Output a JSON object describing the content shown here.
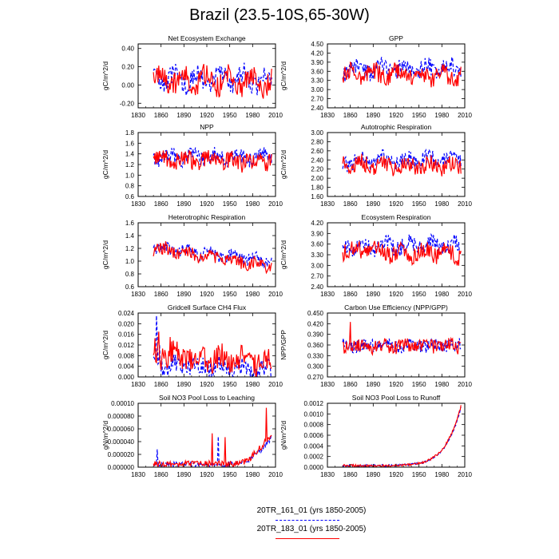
{
  "title": "Brazil (23.5-10S,65-30W)",
  "x_axis": {
    "ticks": [
      1830,
      1860,
      1890,
      1920,
      1950,
      1980,
      2010
    ],
    "range": [
      1830,
      2010
    ]
  },
  "legend": [
    {
      "name": "20TR_161_01 (yrs 1850-2005)",
      "color": "#0000ff",
      "style": "dashed"
    },
    {
      "name": "20TR_183_01 (yrs 1850-2005)",
      "color": "#ff0000",
      "style": "solid"
    }
  ],
  "chart_data": [
    {
      "type": "line",
      "title": "Net Ecosystem Exchange",
      "ylabel": "gC/m^2/d",
      "ylim": [
        -0.25,
        0.45
      ],
      "yticks": [
        -0.2,
        0.0,
        0.2,
        0.4
      ],
      "ytick_labels": [
        "-0.20",
        "0.00",
        "0.20",
        "0.40"
      ],
      "series": [
        {
          "name": "20TR_161_01",
          "x_start": 1850,
          "x_end": 2005,
          "mean": 0.06,
          "amp": 0.08,
          "trend": 0.0,
          "noise": 0.11,
          "seed": 3,
          "spike": []
        },
        {
          "name": "20TR_183_01",
          "x_start": 1850,
          "x_end": 2005,
          "mean": 0.07,
          "amp": 0.07,
          "trend": -0.04,
          "noise": 0.12,
          "seed": 7,
          "spike": []
        }
      ]
    },
    {
      "type": "line",
      "title": "GPP",
      "ylabel": "gC/m^2/d",
      "ylim": [
        2.4,
        4.5
      ],
      "yticks": [
        2.4,
        2.7,
        3.0,
        3.3,
        3.6,
        3.9,
        4.2,
        4.5
      ],
      "ytick_labels": [
        "2.40",
        "2.70",
        "3.00",
        "3.30",
        "3.60",
        "3.90",
        "4.20",
        "4.50"
      ],
      "series": [
        {
          "name": "20TR_161_01",
          "x_start": 1850,
          "x_end": 2005,
          "mean": 3.65,
          "amp": 0.15,
          "trend": 0.05,
          "noise": 0.28,
          "seed": 11,
          "spike": []
        },
        {
          "name": "20TR_183_01",
          "x_start": 1850,
          "x_end": 2005,
          "mean": 3.55,
          "amp": 0.12,
          "trend": -0.1,
          "noise": 0.3,
          "seed": 13,
          "spike": []
        }
      ]
    },
    {
      "type": "line",
      "title": "NPP",
      "ylabel": "gC/m^2/d",
      "ylim": [
        0.6,
        1.8
      ],
      "yticks": [
        0.6,
        0.8,
        1.0,
        1.2,
        1.4,
        1.6,
        1.8
      ],
      "ytick_labels": [
        "0.6",
        "0.8",
        "1.0",
        "1.2",
        "1.4",
        "1.6",
        "1.8"
      ],
      "series": [
        {
          "name": "20TR_161_01",
          "x_start": 1850,
          "x_end": 2005,
          "mean": 1.35,
          "amp": 0.06,
          "trend": 0.0,
          "noise": 0.15,
          "seed": 17,
          "spike": []
        },
        {
          "name": "20TR_183_01",
          "x_start": 1850,
          "x_end": 2005,
          "mean": 1.3,
          "amp": 0.05,
          "trend": -0.05,
          "noise": 0.17,
          "seed": 19,
          "spike": []
        }
      ]
    },
    {
      "type": "line",
      "title": "Autotrophic Respiration",
      "ylabel": "gC/m^2/d",
      "ylim": [
        1.6,
        3.0
      ],
      "yticks": [
        1.6,
        1.8,
        2.0,
        2.2,
        2.4,
        2.6,
        2.8,
        3.0
      ],
      "ytick_labels": [
        "1.60",
        "1.80",
        "2.00",
        "2.20",
        "2.40",
        "2.60",
        "2.80",
        "3.00"
      ],
      "series": [
        {
          "name": "20TR_161_01",
          "x_start": 1850,
          "x_end": 2005,
          "mean": 2.35,
          "amp": 0.08,
          "trend": 0.08,
          "noise": 0.17,
          "seed": 23,
          "spike": []
        },
        {
          "name": "20TR_183_01",
          "x_start": 1850,
          "x_end": 2005,
          "mean": 2.3,
          "amp": 0.07,
          "trend": -0.05,
          "noise": 0.18,
          "seed": 29,
          "spike": []
        }
      ]
    },
    {
      "type": "line",
      "title": "Heterotrophic Respiration",
      "ylabel": "gC/m^2/d",
      "ylim": [
        0.6,
        1.6
      ],
      "yticks": [
        0.6,
        0.8,
        1.0,
        1.2,
        1.4,
        1.6
      ],
      "ytick_labels": [
        "0.6",
        "0.8",
        "1.0",
        "1.2",
        "1.4",
        "1.6"
      ],
      "series": [
        {
          "name": "20TR_161_01",
          "x_start": 1850,
          "x_end": 2005,
          "mean": 1.22,
          "amp": 0.04,
          "trend": -0.22,
          "noise": 0.09,
          "seed": 31,
          "spike": []
        },
        {
          "name": "20TR_183_01",
          "x_start": 1850,
          "x_end": 2005,
          "mean": 1.2,
          "amp": 0.04,
          "trend": -0.28,
          "noise": 0.1,
          "seed": 37,
          "spike": []
        }
      ]
    },
    {
      "type": "line",
      "title": "Ecosystem Respiration",
      "ylabel": "gC/m^2/d",
      "ylim": [
        2.4,
        4.2
      ],
      "yticks": [
        2.4,
        2.7,
        3.0,
        3.3,
        3.6,
        3.9,
        4.2
      ],
      "ytick_labels": [
        "2.40",
        "2.70",
        "3.00",
        "3.30",
        "3.60",
        "3.90",
        "4.20"
      ],
      "series": [
        {
          "name": "20TR_161_01",
          "x_start": 1850,
          "x_end": 2005,
          "mean": 3.55,
          "amp": 0.1,
          "trend": 0.0,
          "noise": 0.23,
          "seed": 41,
          "spike": []
        },
        {
          "name": "20TR_183_01",
          "x_start": 1850,
          "x_end": 2005,
          "mean": 3.45,
          "amp": 0.1,
          "trend": -0.15,
          "noise": 0.25,
          "seed": 43,
          "spike": []
        }
      ]
    },
    {
      "type": "line",
      "title": "Gridcell Surface CH4 Flux",
      "ylabel": "gC/m^2/d",
      "ylim": [
        0.0,
        0.024
      ],
      "yticks": [
        0.0,
        0.004,
        0.008,
        0.012,
        0.016,
        0.02,
        0.024
      ],
      "ytick_labels": [
        "0.000",
        "0.004",
        "0.008",
        "0.012",
        "0.016",
        "0.020",
        "0.024"
      ],
      "series": [
        {
          "name": "20TR_161_01",
          "x_start": 1850,
          "x_end": 2005,
          "mean": 0.0045,
          "amp": 0.001,
          "trend": -0.002,
          "noise": 0.0035,
          "seed": 47,
          "spike": [
            [
              1854,
              0.023
            ],
            [
              1855,
              0.016
            ],
            [
              1858,
              0.012
            ]
          ]
        },
        {
          "name": "20TR_183_01",
          "x_start": 1850,
          "x_end": 2005,
          "mean": 0.0085,
          "amp": 0.002,
          "trend": -0.003,
          "noise": 0.0045,
          "seed": 53,
          "spike": [
            [
              1857,
              0.017
            ],
            [
              1872,
              0.015
            ]
          ]
        }
      ]
    },
    {
      "type": "line",
      "title": "Carbon Use Efficiency (NPP/GPP)",
      "ylabel": "NPP/GPP",
      "ylim": [
        0.27,
        0.45
      ],
      "yticks": [
        0.27,
        0.3,
        0.33,
        0.36,
        0.39,
        0.42,
        0.45
      ],
      "ytick_labels": [
        "0.270",
        "0.300",
        "0.330",
        "0.360",
        "0.390",
        "0.420",
        "0.450"
      ],
      "series": [
        {
          "name": "20TR_161_01",
          "x_start": 1850,
          "x_end": 2005,
          "mean": 0.358,
          "amp": 0.004,
          "trend": 0.0,
          "noise": 0.018,
          "seed": 59,
          "spike": []
        },
        {
          "name": "20TR_183_01",
          "x_start": 1850,
          "x_end": 2005,
          "mean": 0.356,
          "amp": 0.004,
          "trend": 0.0,
          "noise": 0.02,
          "seed": 61,
          "spike": [
            [
              1860,
              0.425
            ]
          ]
        }
      ]
    },
    {
      "type": "line",
      "title": "Soil NO3 Pool Loss to Leaching",
      "ylabel": "gN/m^2/d",
      "ylim": [
        0.0,
        0.0001
      ],
      "yticks": [
        0.0,
        2e-05,
        4e-05,
        6e-05,
        8e-05,
        0.0001
      ],
      "ytick_labels": [
        "0.000000",
        "0.000020",
        "0.000040",
        "0.000060",
        "0.000080",
        "0.00010"
      ],
      "series": [
        {
          "name": "20TR_161_01",
          "x_start": 1850,
          "x_end": 2005,
          "mean": 4e-06,
          "amp": 0.0,
          "trend": 0.0,
          "noise": 4e-06,
          "seed": 67,
          "growth": 4.2e-05,
          "growth_start": 1960,
          "spike": [
            [
              1855,
              2.8e-05
            ],
            [
              1935,
              4.8e-05
            ]
          ]
        },
        {
          "name": "20TR_183_01",
          "x_start": 1850,
          "x_end": 2005,
          "mean": 5e-06,
          "amp": 0.0,
          "trend": 0.0,
          "noise": 5e-06,
          "seed": 71,
          "growth": 4.8e-05,
          "growth_start": 1960,
          "spike": [
            [
              1927,
              5.3e-05
            ],
            [
              1944,
              4.7e-05
            ],
            [
              1998,
              9.3e-05
            ]
          ]
        }
      ]
    },
    {
      "type": "line",
      "title": "Soil NO3 Pool Loss to Runoff",
      "ylabel": "gN/m^2/d",
      "ylim": [
        0.0,
        0.0012
      ],
      "yticks": [
        0.0,
        0.0002,
        0.0004,
        0.0006,
        0.0008,
        0.001,
        0.0012
      ],
      "ytick_labels": [
        "0.0000",
        "0.0002",
        "0.0004",
        "0.0006",
        "0.0008",
        "0.0010",
        "0.0012"
      ],
      "series": [
        {
          "name": "20TR_161_01",
          "x_start": 1850,
          "x_end": 2005,
          "mean": 3e-05,
          "amp": 0.0,
          "trend": 0.0,
          "noise": 2e-05,
          "seed": 73,
          "exp": 0.00108,
          "spike": []
        },
        {
          "name": "20TR_183_01",
          "x_start": 1850,
          "x_end": 2005,
          "mean": 3e-05,
          "amp": 0.0,
          "trend": 0.0,
          "noise": 2e-05,
          "seed": 79,
          "exp": 0.00112,
          "spike": []
        }
      ]
    }
  ]
}
